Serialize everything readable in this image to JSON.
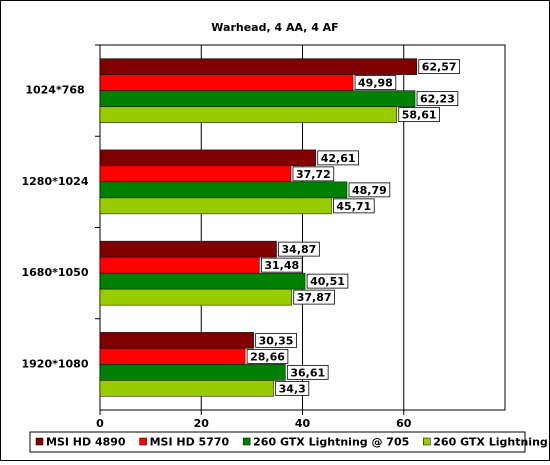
{
  "chart_data": {
    "type": "bar",
    "orientation": "horizontal",
    "title": "Warhead, 4 AA, 4 AF",
    "categories": [
      "1024*768",
      "1280*1024",
      "1680*1050",
      "1920*1080"
    ],
    "series": [
      {
        "name": "MSI HD 4890",
        "color": "#800000",
        "values": [
          62.57,
          42.61,
          34.87,
          30.35
        ],
        "value_labels": [
          "62,57",
          "42,61",
          "34,87",
          "30,35"
        ]
      },
      {
        "name": "MSI HD 5770",
        "color": "#ff0000",
        "values": [
          49.98,
          37.72,
          31.48,
          28.66
        ],
        "value_labels": [
          "49,98",
          "37,72",
          "31,48",
          "28,66"
        ]
      },
      {
        "name": "260 GTX Lightning @ 705",
        "color": "#008000",
        "values": [
          62.23,
          48.79,
          40.51,
          36.61
        ],
        "value_labels": [
          "62,23",
          "48,79",
          "40,51",
          "36,61"
        ]
      },
      {
        "name": "260 GTX Lightning",
        "color": "#99cc00",
        "values": [
          58.61,
          45.71,
          37.87,
          34.3
        ],
        "value_labels": [
          "58,61",
          "45,71",
          "37,87",
          "34,3"
        ]
      }
    ],
    "xlim": [
      0,
      80
    ],
    "xticks": [
      0,
      20,
      40,
      60
    ],
    "grid": true,
    "legend": "bottom"
  }
}
